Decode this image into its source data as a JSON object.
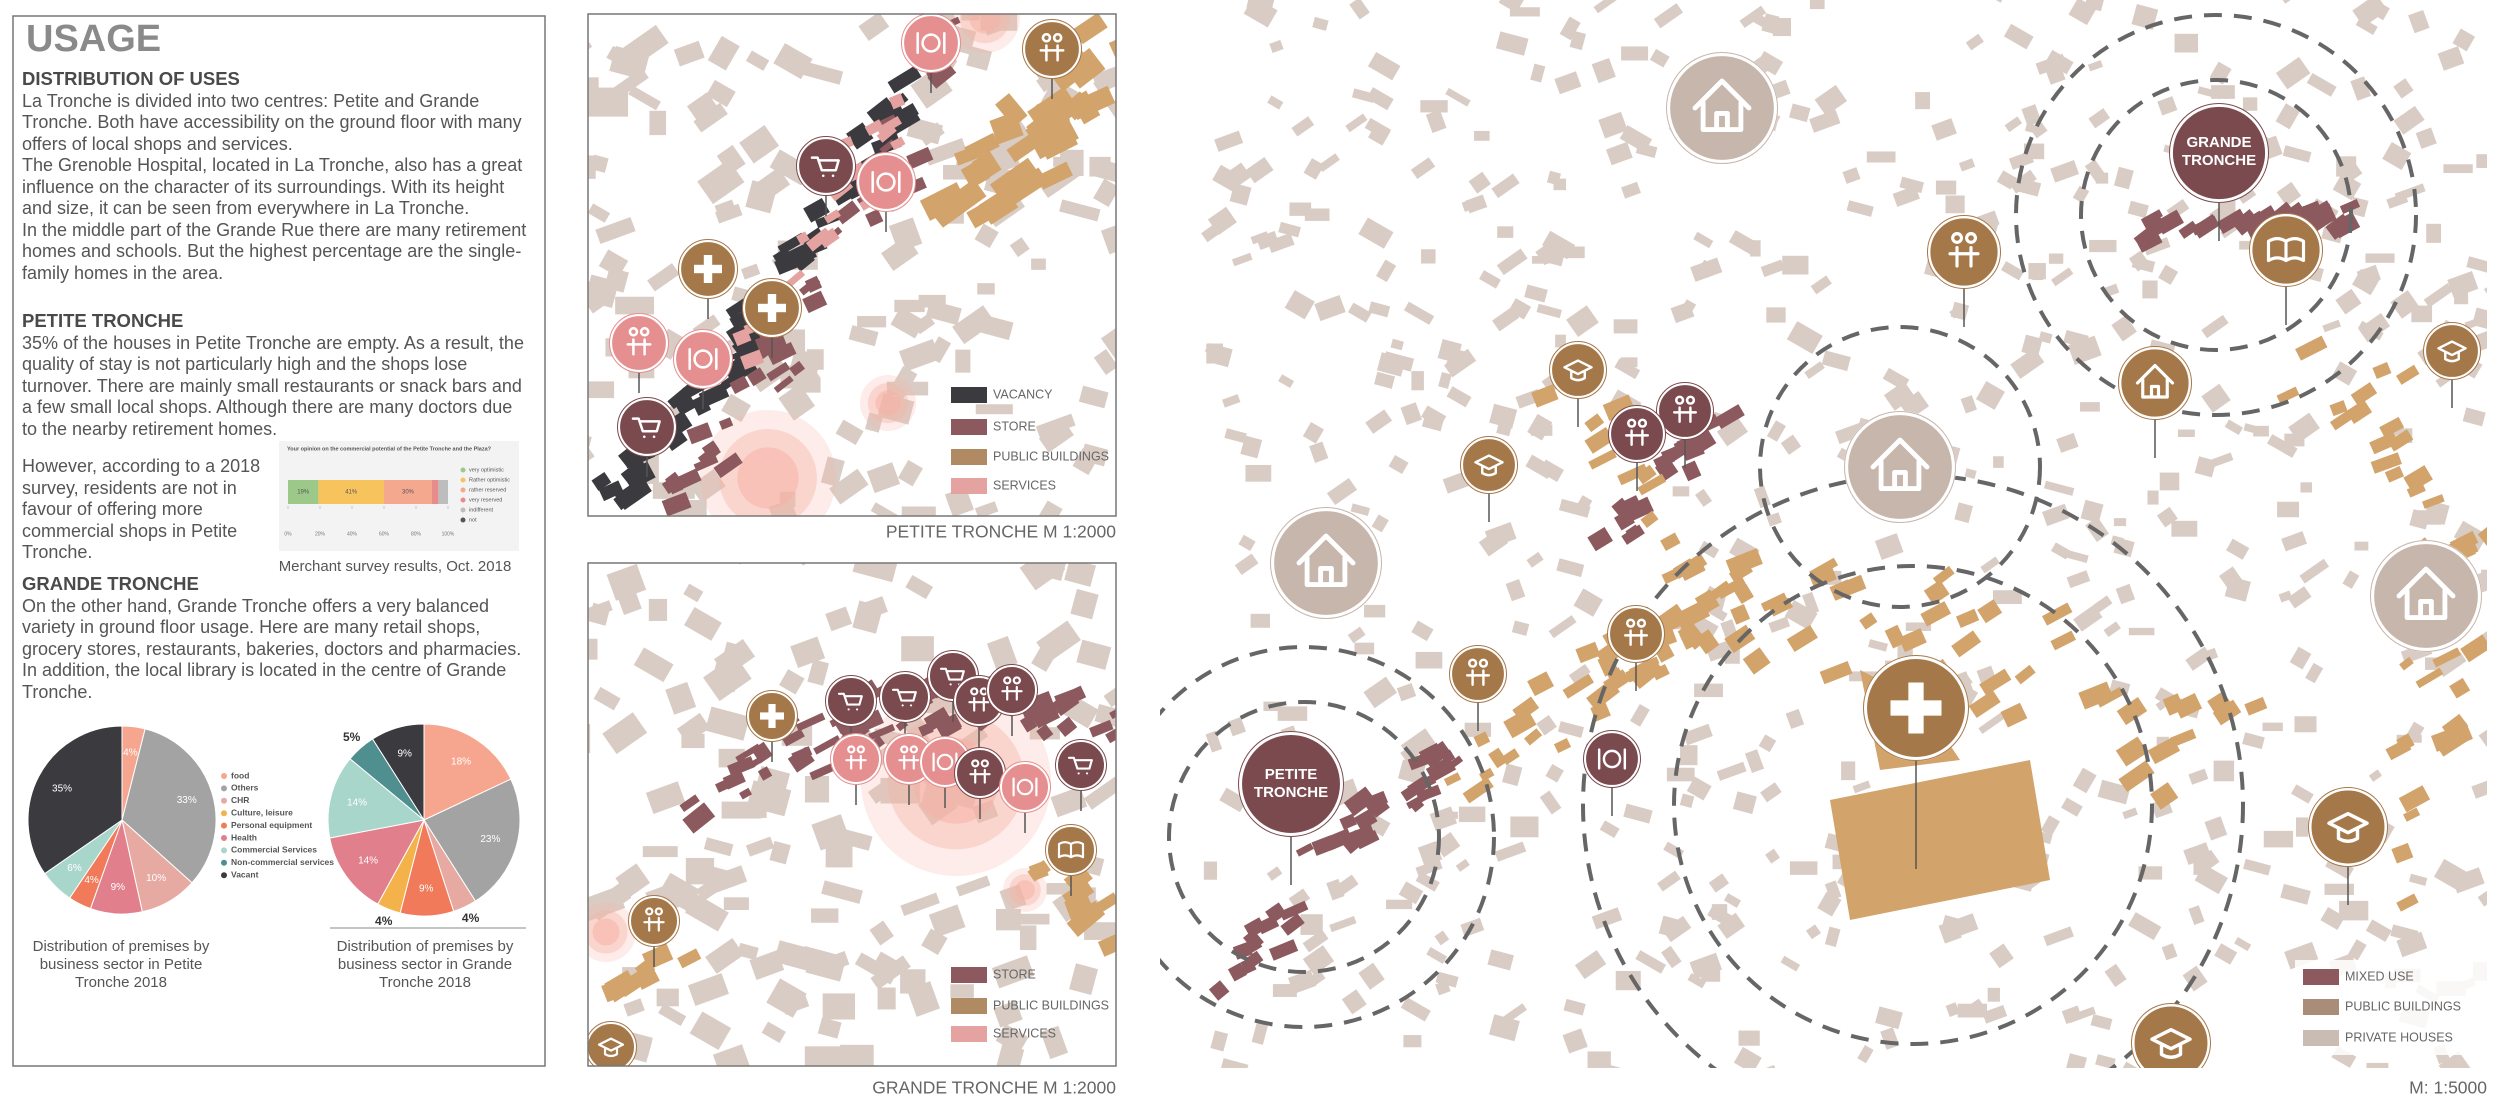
{
  "header": {
    "title": "USAGE"
  },
  "sections": [
    {
      "heading": "DISTRIBUTION OF USES",
      "paragraphs": [
        "La Tronche is divided into two centres: Petite and Grande Tronche. Both have accessibility on the ground floor with many offers of local shops and services.",
        "The Grenoble Hospital, located in La Tronche, also has a great influence on the character of its surroundings. With its height and size, it can be seen from everywhere in La Tronche.",
        "In the middle part of the Grande Rue there are many retirement homes and schools. But the highest percentage are the single-family homes in the area."
      ]
    },
    {
      "heading": "PETITE TRONCHE",
      "paragraphs": [
        "35% of the houses in Petite Tronche are empty. As a result, the quality of stay is not particularly high and the shops lose turnover. There are mainly small restaurants or snack bars and a few small local shops. Although there are many doctors due to the nearby retirement homes.",
        "However, according to a 2018 survey, residents are not in favour of offering more commercial shops in Petite Tronche."
      ]
    },
    {
      "heading": "GRANDE TRONCHE",
      "paragraphs": [
        "On the other hand, Grande Tronche offers a very balanced variety in ground floor usage. Here are many retail shops, grocery stores, restaurants, bakeries, doctors and pharmacies.",
        "In addition, the local library is located in the centre of Grande Tronche."
      ]
    }
  ],
  "survey_caption": "Merchant survey results, Oct. 2018",
  "chart_data": [
    {
      "type": "bar",
      "orientation": "horizontal",
      "stacked": true,
      "title": "Your opinion on the commercial potential of the Petite Tronche and the Plaza?",
      "series": [
        {
          "name": "very optimistic",
          "color": "#9cc98a",
          "values": [
            19
          ],
          "value_labels": [
            "19%"
          ]
        },
        {
          "name": "Rather optimistic",
          "color": "#f7c35c",
          "values": [
            41
          ],
          "value_labels": [
            "41%"
          ]
        },
        {
          "name": "rather reserved",
          "color": "#f4a98e",
          "values": [
            30
          ],
          "value_labels": [
            "30%"
          ]
        },
        {
          "name": "very reserved",
          "color": "#e88b8b",
          "values": [
            4
          ]
        },
        {
          "name": "indifferent",
          "color": "#bdbdbd",
          "values": [
            6
          ]
        },
        {
          "name": "not",
          "color": "#555555",
          "values": [
            0
          ]
        }
      ],
      "xlim": [
        0,
        100
      ],
      "xticks": [
        {
          "value": 0,
          "label": "0%"
        },
        {
          "value": 20,
          "label": "20%"
        },
        {
          "value": 40,
          "label": "40%"
        },
        {
          "value": 60,
          "label": "60%"
        },
        {
          "value": 80,
          "label": "80%"
        },
        {
          "value": 100,
          "label": "100%"
        }
      ]
    },
    {
      "type": "pie",
      "title": "Distribution of premises by business sector in Petite Tronche 2018",
      "values": [
        4,
        33,
        10,
        9,
        4,
        6,
        35
      ],
      "value_labels": [
        "4%",
        "33%",
        "10%",
        "9%",
        "4%",
        "6%",
        "35%"
      ],
      "colors": [
        "#f6a68f",
        "#a3a3a3",
        "#e6aaa3",
        "#e27f8c",
        "#f07a5a",
        "#a9d6cb",
        "#3b3a3f"
      ],
      "legend": {
        "names": [
          "food",
          "Others",
          "CHR",
          "Culture, leisure",
          "Personal equipment",
          "Health",
          "Commercial Services",
          "Non-commercial services",
          "Vacant"
        ],
        "colors": [
          "#f6a68f",
          "#a3a3a3",
          "#e6aaa3",
          "#f4b24a",
          "#f07a5a",
          "#e27f8c",
          "#a9d6cb",
          "#4f8f90",
          "#3b3a3f"
        ]
      }
    },
    {
      "type": "pie",
      "title": "Distribution of premises by business sector in Grande Tronche 2018",
      "values": [
        18,
        23,
        4,
        9,
        4,
        14,
        14,
        5,
        9
      ],
      "value_labels": [
        "18%",
        "23%",
        "4%",
        "9%",
        "4%",
        "14%",
        "14%",
        "5%",
        "9%"
      ],
      "colors": [
        "#f6a68f",
        "#a3a3a3",
        "#e6aaa3",
        "#f07a5a",
        "#f4b24a",
        "#e27f8c",
        "#a9d6cb",
        "#4f8f90",
        "#3b3a3f"
      ]
    }
  ],
  "maps": [
    {
      "caption": "PETITE TRONCHE M 1:2000",
      "legend": [
        "VACANCY",
        "STORE",
        "PUBLIC BUILDINGS",
        "SERVICES"
      ]
    },
    {
      "caption": "GRANDE TRONCHE M 1:2000",
      "legend": [
        "STORE",
        "PUBLIC BUILDINGS",
        "SERVICES"
      ]
    },
    {
      "caption": "M: 1:5000",
      "legend": [
        "MIXED USE",
        "PUBLIC BUILDINGS",
        "PRIVATE HOUSES"
      ],
      "labels": [
        "GRANDE TRONCHE",
        "PETITE TRONCHE"
      ]
    }
  ]
}
